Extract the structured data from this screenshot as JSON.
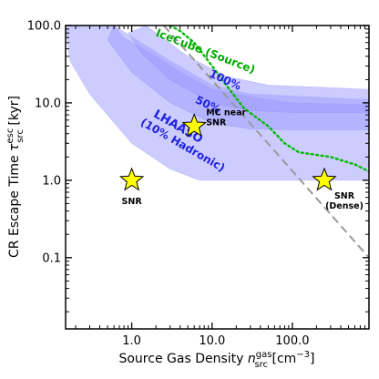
{
  "chart_data": {
    "type": "line",
    "x_scale": "log",
    "y_scale": "log",
    "xlim": [
      0.15,
      900
    ],
    "ylim": [
      0.012,
      100
    ],
    "x_ticks": [
      {
        "value": 1,
        "label": "1.0"
      },
      {
        "value": 10,
        "label": "10.0"
      },
      {
        "value": 100,
        "label": "100.0"
      }
    ],
    "y_ticks": [
      {
        "value": 0.1,
        "label": "0.1"
      },
      {
        "value": 1,
        "label": "1.0"
      },
      {
        "value": 10,
        "label": "10.0"
      },
      {
        "value": 100,
        "label": "100.0"
      }
    ],
    "xlabel": {
      "main": "Source Gas Density ",
      "var": "n",
      "sup": "gas",
      "sub": "src",
      "unit": " [cm",
      "exp": "−3",
      "close": "]"
    },
    "ylabel": {
      "main": "CR Escape Time ",
      "var": "τ",
      "sup": "esc",
      "sub": "src",
      "unit": " [kyr]"
    },
    "bands": [
      {
        "name": "LHAASO (10% Hadronic)",
        "upper": [
          [
            0.15,
            100
          ],
          [
            0.6,
            100
          ],
          [
            0.8,
            70
          ],
          [
            2,
            40
          ],
          [
            4,
            25
          ],
          [
            10,
            15
          ],
          [
            30,
            12
          ],
          [
            100,
            10
          ],
          [
            900,
            9.5
          ]
        ],
        "lower": [
          [
            900,
            1
          ],
          [
            100,
            1
          ],
          [
            20,
            1
          ],
          [
            7,
            1
          ],
          [
            3,
            1.4
          ],
          [
            1,
            3
          ],
          [
            0.3,
            13
          ],
          [
            0.17,
            35
          ]
        ]
      },
      {
        "name": "50%",
        "upper": [
          [
            0.6,
            100
          ],
          [
            3,
            35
          ],
          [
            10,
            17
          ],
          [
            30,
            13
          ],
          [
            900,
            11
          ]
        ],
        "lower": [
          [
            900,
            4.5
          ],
          [
            100,
            4.5
          ],
          [
            30,
            4.6
          ],
          [
            10,
            5.5
          ],
          [
            3,
            10
          ],
          [
            1,
            25
          ],
          [
            0.5,
            65
          ]
        ]
      },
      {
        "name": "100%",
        "upper": [
          [
            1.5,
            100
          ],
          [
            5,
            40
          ],
          [
            15,
            22
          ],
          [
            50,
            17
          ],
          [
            900,
            15
          ]
        ],
        "lower": [
          [
            900,
            7.5
          ],
          [
            100,
            7.5
          ],
          [
            30,
            8
          ],
          [
            10,
            10
          ],
          [
            3,
            20
          ],
          [
            1.3,
            45
          ],
          [
            0.9,
            80
          ]
        ]
      }
    ],
    "lines": [
      {
        "name": "IceCube (Source)",
        "color": "#00bb00",
        "style": "dotted",
        "points": [
          [
            3,
            100
          ],
          [
            4,
            85
          ],
          [
            6,
            60
          ],
          [
            10,
            30
          ],
          [
            15,
            17
          ],
          [
            25,
            8.5
          ],
          [
            50,
            5
          ],
          [
            80,
            3
          ],
          [
            120,
            2.3
          ],
          [
            300,
            2
          ],
          [
            600,
            1.6
          ],
          [
            900,
            1.3
          ]
        ]
      },
      {
        "name": "",
        "color": "#999999",
        "style": "dashed",
        "points": [
          [
            2.5,
            100
          ],
          [
            900,
            0.1
          ]
        ]
      }
    ],
    "stars": [
      {
        "x": 1,
        "y": 1,
        "label": "SNR",
        "label_lines": [
          "SNR"
        ]
      },
      {
        "x": 6,
        "y": 5,
        "label": "MC near SNR",
        "label_lines": [
          "MC near",
          "SNR"
        ]
      },
      {
        "x": 250,
        "y": 1,
        "label": "SNR (Dense)",
        "label_lines": [
          "SNR",
          "(Dense)"
        ]
      }
    ],
    "annotations": [
      {
        "text": "IceCube (Source)",
        "x": 8,
        "y": 42,
        "rotate": 21,
        "color": "#00aa00",
        "size": 12
      },
      {
        "text": "100%",
        "x": 14,
        "y": 18,
        "rotate": 25,
        "color": "#1f1fe0",
        "size": 12
      },
      {
        "text": "50%",
        "x": 8.5,
        "y": 8.6,
        "rotate": 25,
        "color": "#1f1fe0",
        "size": 12
      },
      {
        "text": "LHAASO",
        "x": 3.6,
        "y": 4.5,
        "rotate": 30,
        "color": "#1f1fe0",
        "size": 13
      },
      {
        "text": "(10% Hadronic)",
        "x": 4.1,
        "y": 2.6,
        "rotate": 30,
        "color": "#1f1fe0",
        "size": 12
      }
    ],
    "band_color": "#9a9aff",
    "band_opacity": 0.5,
    "star_color": "#ffff00",
    "grid": false,
    "legend": "none"
  }
}
